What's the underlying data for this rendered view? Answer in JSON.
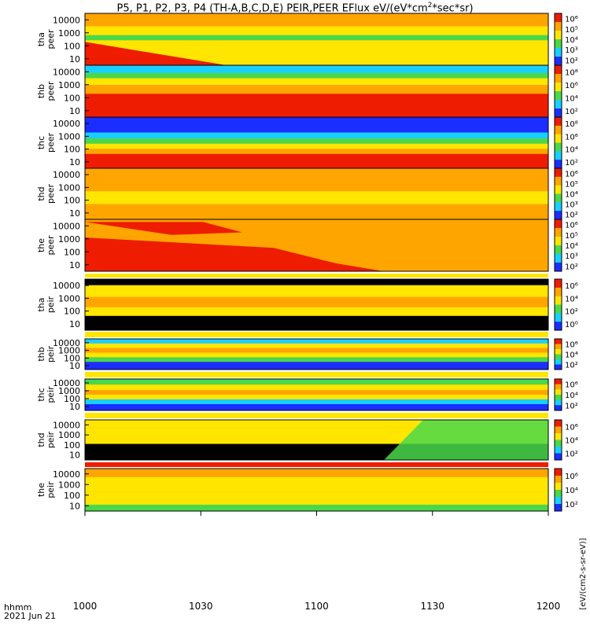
{
  "title": {
    "main": "P5, P1, P2, P3, P4 (TH-A,B,C,D,E) PEIR,PEER EFlux eV/(eV*cm",
    "sup": "2",
    "tail": "*sec*sr)"
  },
  "footer": {
    "time_label": "hhmm",
    "date": "2021 Jun 21"
  },
  "colorbar_label": "[eV/(cm2-s-sr-eV)]",
  "chart_data": [
    {
      "type": "heatmap",
      "probe": "tha",
      "species": "peer",
      "ylabel": "tha peer",
      "yticks": [
        "10000",
        "1000",
        "100",
        "10"
      ],
      "cbar_ticks": [
        "10⁶",
        "10⁵",
        "10⁴",
        "10³",
        "10²"
      ]
    },
    {
      "type": "heatmap",
      "probe": "thb",
      "species": "peer",
      "ylabel": "thb peer",
      "yticks": [
        "10000",
        "1000",
        "100",
        "10"
      ],
      "cbar_ticks": [
        "10⁸",
        "10⁶",
        "10⁴",
        "10²"
      ]
    },
    {
      "type": "heatmap",
      "probe": "thc",
      "species": "peer",
      "ylabel": "thc peer",
      "yticks": [
        "10000",
        "1000",
        "100",
        "10"
      ],
      "cbar_ticks": [
        "10⁸",
        "10⁶",
        "10⁴",
        "10²"
      ]
    },
    {
      "type": "heatmap",
      "probe": "thd",
      "species": "peer",
      "ylabel": "thd peer",
      "yticks": [
        "10000",
        "1000",
        "100",
        "10"
      ],
      "cbar_ticks": [
        "10⁶",
        "10⁵",
        "10⁴",
        "10³",
        "10²"
      ]
    },
    {
      "type": "heatmap",
      "probe": "the",
      "species": "peer",
      "ylabel": "the peer",
      "yticks": [
        "10000",
        "1000",
        "100",
        "10"
      ],
      "cbar_ticks": [
        "10⁶",
        "10⁵",
        "10⁴",
        "10³",
        "10²"
      ]
    },
    {
      "type": "heatmap",
      "probe": "tha",
      "species": "peir",
      "ylabel": "tha peir",
      "yticks": [
        "10000",
        "1000",
        "100",
        "10"
      ],
      "cbar_ticks": [
        "10⁶",
        "10⁴",
        "10²",
        "10⁰"
      ]
    },
    {
      "type": "heatmap",
      "probe": "thb",
      "species": "peir",
      "ylabel": "thb peir",
      "yticks": [
        "10000",
        "1000",
        "100",
        "10"
      ],
      "cbar_ticks": [
        "10⁶",
        "10⁴",
        "10²"
      ]
    },
    {
      "type": "heatmap",
      "probe": "thc",
      "species": "peir",
      "ylabel": "thc peir",
      "yticks": [
        "10000",
        "1000",
        "100",
        "10"
      ],
      "cbar_ticks": [
        "10⁶",
        "10⁴",
        "10²"
      ]
    },
    {
      "type": "heatmap",
      "probe": "thd",
      "species": "peir",
      "ylabel": "thd peir",
      "yticks": [
        "10000",
        "1000",
        "100",
        "10"
      ],
      "cbar_ticks": [
        "10⁶",
        "10⁴",
        "10²"
      ]
    },
    {
      "type": "heatmap",
      "probe": "the",
      "species": "peir",
      "ylabel": "the peir",
      "yticks": [
        "10000",
        "1000",
        "100",
        "10"
      ],
      "cbar_ticks": [
        "10⁶",
        "10⁴",
        "10²"
      ]
    }
  ],
  "x_ticks": [
    "1000",
    "1030",
    "1100",
    "1130",
    "1200"
  ],
  "colors": {
    "black": "#000000",
    "blue": "#1a2eff",
    "cyan": "#18d0ff",
    "green": "#4ad84a",
    "yellow": "#ffe600",
    "orange": "#ffa500",
    "red": "#ee1c00"
  }
}
